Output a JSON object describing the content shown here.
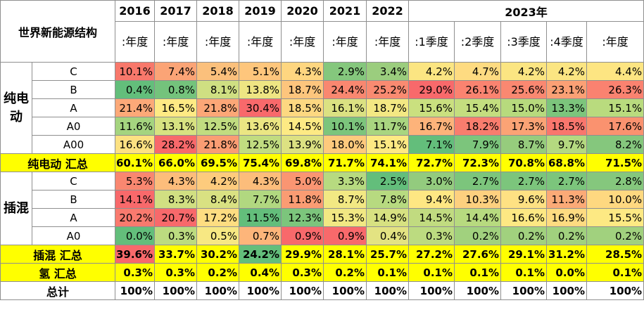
{
  "header": {
    "title": "世界新能源结构",
    "years": [
      "2016",
      "2017",
      "2018",
      "2019",
      "2020",
      "2021",
      "2022"
    ],
    "year2023": "2023年",
    "sub_year": ":年度",
    "quarters": [
      ":1季度",
      ":2季度",
      ":3季度",
      ":4季度",
      ":年度"
    ]
  },
  "groups": [
    {
      "label": "纯电动",
      "rows": [
        {
          "cat": "C",
          "values": [
            "10.1%",
            "7.4%",
            "5.4%",
            "5.1%",
            "4.3%",
            "2.9%",
            "3.4%",
            "4.2%",
            "4.7%",
            "4.2%",
            "4.2%",
            "4.4%"
          ],
          "colors": [
            "#f8786b",
            "#fba476",
            "#fbc07c",
            "#fec67c",
            "#fed680",
            "#85c77d",
            "#9bcd7e",
            "#fbe582",
            "#fedb81",
            "#fbe582",
            "#fbe582",
            "#fde582"
          ]
        },
        {
          "cat": "B",
          "values": [
            "0.4%",
            "0.8%",
            "8.1%",
            "13.8%",
            "18.7%",
            "24.4%",
            "25.2%",
            "29.0%",
            "26.1%",
            "25.6%",
            "23.1%",
            "26.3%"
          ],
          "colors": [
            "#63be7b",
            "#74c37c",
            "#cfdf82",
            "#eee583",
            "#fdc57d",
            "#f98770",
            "#f98a71",
            "#f8696b",
            "#fa8370",
            "#fa8871",
            "#fba075",
            "#fa8270"
          ]
        },
        {
          "cat": "A",
          "values": [
            "21.4%",
            "16.5%",
            "21.8%",
            "30.4%",
            "18.5%",
            "16.1%",
            "18.7%",
            "15.6%",
            "15.4%",
            "15.0%",
            "13.3%",
            "15.1%"
          ],
          "colors": [
            "#fca978",
            "#feea84",
            "#fca777",
            "#f8696b",
            "#fdd881",
            "#dbe182",
            "#f3e883",
            "#cae07f",
            "#c4de7f",
            "#b7da7d",
            "#7cc57c",
            "#b9db7e"
          ]
        },
        {
          "cat": "A0",
          "values": [
            "11.6%",
            "13.1%",
            "12.5%",
            "13.6%",
            "14.5%",
            "10.1%",
            "11.7%",
            "16.7%",
            "18.2%",
            "17.3%",
            "18.5%",
            "17.6%"
          ],
          "colors": [
            "#a5d47f",
            "#d7e281",
            "#c1dc80",
            "#ebe683",
            "#fdea84",
            "#7cc57c",
            "#a9d580",
            "#fdb37a",
            "#f97d6e",
            "#fba375",
            "#f9766d",
            "#fa926f"
          ]
        },
        {
          "cat": "A00",
          "values": [
            "16.6%",
            "28.2%",
            "21.8%",
            "12.5%",
            "13.9%",
            "18.0%",
            "15.1%",
            "7.1%",
            "7.9%",
            "8.7%",
            "9.7%",
            "8.2%"
          ],
          "colors": [
            "#fde182",
            "#f8696b",
            "#fa9d73",
            "#c1dc80",
            "#dce182",
            "#feca7d",
            "#fee983",
            "#63be7b",
            "#7cc57c",
            "#96cc7d",
            "#b4d980",
            "#85c77d"
          ]
        }
      ],
      "sum_label": "纯电动 汇总",
      "sum_values": [
        "60.1%",
        "66.0%",
        "69.5%",
        "75.4%",
        "69.8%",
        "71.7%",
        "74.1%",
        "72.7%",
        "72.3%",
        "70.8%",
        "68.8%",
        "71.5%"
      ]
    },
    {
      "label": "插混",
      "rows": [
        {
          "cat": "C",
          "values": [
            "5.3%",
            "4.3%",
            "4.2%",
            "4.3%",
            "5.0%",
            "3.3%",
            "2.5%",
            "3.0%",
            "2.7%",
            "2.7%",
            "2.7%",
            "2.8%"
          ],
          "colors": [
            "#f98770",
            "#fcbd7b",
            "#fdcb7d",
            "#fcbd7b",
            "#fa9572",
            "#b7da80",
            "#63be7b",
            "#93cb7e",
            "#7cc57c",
            "#7cc57c",
            "#7cc57c",
            "#85c77d"
          ]
        },
        {
          "cat": "B",
          "values": [
            "14.1%",
            "8.3%",
            "8.4%",
            "7.7%",
            "11.8%",
            "8.7%",
            "7.8%",
            "9.4%",
            "10.3%",
            "9.6%",
            "11.3%",
            "10.0%"
          ],
          "colors": [
            "#f8696b",
            "#d1df82",
            "#d9e182",
            "#b1d880",
            "#fa9c73",
            "#f2e883",
            "#b7da80",
            "#fee783",
            "#fdd07f",
            "#fee183",
            "#fbaa77",
            "#fed880"
          ]
        },
        {
          "cat": "A",
          "values": [
            "20.2%",
            "20.7%",
            "17.2%",
            "11.5%",
            "12.3%",
            "15.3%",
            "14.9%",
            "14.5%",
            "14.4%",
            "16.6%",
            "16.9%",
            "15.5%"
          ],
          "colors": [
            "#f97a6e",
            "#f8696b",
            "#fedd81",
            "#63be7b",
            "#7cc57c",
            "#f1e883",
            "#d7e181",
            "#c1db80",
            "#b7da7f",
            "#fde883",
            "#fedb81",
            "#fde983"
          ]
        },
        {
          "cat": "A0",
          "values": [
            "0.0%",
            "0.3%",
            "0.5%",
            "0.7%",
            "0.9%",
            "0.9%",
            "0.4%",
            "0.3%",
            "0.2%",
            "0.2%",
            "0.2%",
            "0.2%"
          ],
          "colors": [
            "#63be7b",
            "#bcdb80",
            "#f7e883",
            "#fdb57a",
            "#f8696b",
            "#f8696b",
            "#e3e382",
            "#bcdb80",
            "#a1d17e",
            "#a1d17e",
            "#a1d17e",
            "#a1d17e"
          ]
        }
      ],
      "sum_label": "插混 汇总",
      "sum_values": [
        "39.6%",
        "33.7%",
        "30.2%",
        "24.2%",
        "29.9%",
        "28.1%",
        "25.7%",
        "27.2%",
        "27.6%",
        "29.1%",
        "31.2%",
        "28.5%"
      ],
      "sum_colors": [
        "#f8696b",
        "#ffff00",
        "#ffff00",
        "#63be7b",
        "#ffff00",
        "#ffff00",
        "#ffff00",
        "#ffff00",
        "#ffff00",
        "#ffff00",
        "#ffff00",
        "#ffff00"
      ]
    }
  ],
  "hydrogen": {
    "label": "氢 汇总",
    "values": [
      "0.3%",
      "0.3%",
      "0.2%",
      "0.4%",
      "0.3%",
      "0.2%",
      "0.1%",
      "0.1%",
      "0.1%",
      "0.1%",
      "0.0%",
      "0.1%"
    ]
  },
  "total": {
    "label": "总计",
    "values": [
      "100%",
      "100%",
      "100%",
      "100%",
      "100%",
      "100%",
      "100%",
      "100%",
      "100%",
      "100%",
      "100%",
      "100%"
    ]
  },
  "colors": {
    "sum_highlight": "#ffff00",
    "border": "#8f8f8f"
  }
}
